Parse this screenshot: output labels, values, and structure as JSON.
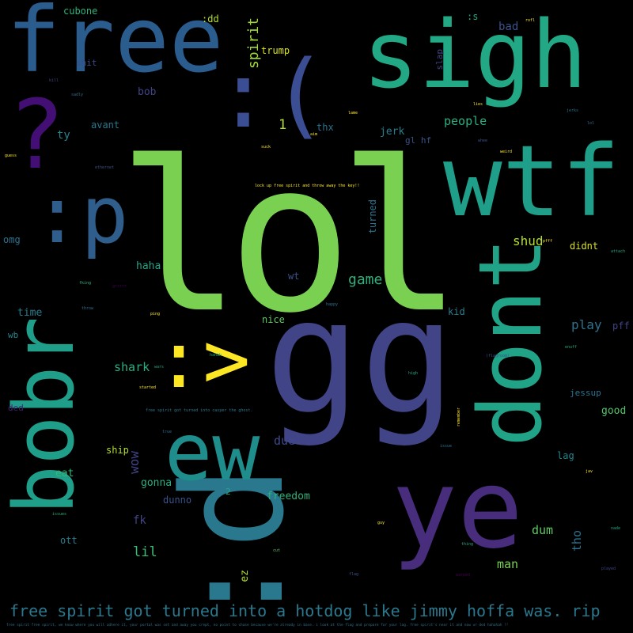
{
  "palette": {
    "background": "#000000",
    "green": "#7ad151",
    "teal": "#22a884",
    "blue": "#2a788e",
    "slate": "#414487",
    "purple": "#440154",
    "yellow": "#fde725"
  },
  "words": [
    {
      "id": "lol",
      "text": "lol"
    },
    {
      "id": "gg",
      "text": "gg"
    },
    {
      "id": "d",
      "text": ":d"
    },
    {
      "id": "free",
      "text": "free"
    },
    {
      "id": "sigh",
      "text": "sigh"
    },
    {
      "id": "paren",
      "text": ":("
    },
    {
      "id": "question",
      "text": "?"
    },
    {
      "id": "p",
      "text": ":p"
    },
    {
      "id": "wtf",
      "text": "wtf"
    },
    {
      "id": "dont",
      "text": "dont"
    },
    {
      "id": "bobr",
      "text": "bobr"
    },
    {
      "id": "ye",
      "text": "ye"
    },
    {
      "id": "ew",
      "text": "ew"
    },
    {
      "id": "gt",
      "text": ":>"
    },
    {
      "id": "hotdog",
      "text": "free spirit got turned into a hotdog like jimmy hoffa was. rip"
    },
    {
      "id": "spirit",
      "text": "spirit"
    },
    {
      "id": "trump",
      "text": "trump"
    },
    {
      "id": "cubone",
      "text": "cubone"
    },
    {
      "id": "dd",
      "text": ":dd"
    },
    {
      "id": "s",
      "text": ":s"
    },
    {
      "id": "bad",
      "text": "bad"
    },
    {
      "id": "slap",
      "text": "slap"
    },
    {
      "id": "shit",
      "text": "shit"
    },
    {
      "id": "bob",
      "text": "bob"
    },
    {
      "id": "avant",
      "text": "avant"
    },
    {
      "id": "ty",
      "text": "ty"
    },
    {
      "id": "one",
      "text": "1"
    },
    {
      "id": "thx",
      "text": "thx"
    },
    {
      "id": "jerk",
      "text": "jerk"
    },
    {
      "id": "glhf",
      "text": "gl hf"
    },
    {
      "id": "people",
      "text": "people"
    },
    {
      "id": "lockup",
      "text": "lock up free spirit and throw away the key!!"
    },
    {
      "id": "turned",
      "text": "turned"
    },
    {
      "id": "omg",
      "text": "omg"
    },
    {
      "id": "haha",
      "text": "haha"
    },
    {
      "id": "shud",
      "text": "shud"
    },
    {
      "id": "didnt",
      "text": "didnt"
    },
    {
      "id": "game",
      "text": "game"
    },
    {
      "id": "wt",
      "text": "wt"
    },
    {
      "id": "time",
      "text": "time"
    },
    {
      "id": "nice",
      "text": "nice"
    },
    {
      "id": "kid",
      "text": "kid"
    },
    {
      "id": "play",
      "text": "play"
    },
    {
      "id": "pff",
      "text": "pff"
    },
    {
      "id": "wb",
      "text": "wb"
    },
    {
      "id": "shark",
      "text": "shark"
    },
    {
      "id": "jessup",
      "text": "jessup"
    },
    {
      "id": "ded",
      "text": "ded"
    },
    {
      "id": "good",
      "text": "good"
    },
    {
      "id": "fsgt",
      "text": "free spirit got turned into casper the ghost."
    },
    {
      "id": "duel",
      "text": "duel"
    },
    {
      "id": "ship",
      "text": "ship"
    },
    {
      "id": "wow",
      "text": "wow"
    },
    {
      "id": "lag",
      "text": "lag"
    },
    {
      "id": "eat",
      "text": "eat"
    },
    {
      "id": "gonna",
      "text": "gonna"
    },
    {
      "id": "dunno",
      "text": "dunno"
    },
    {
      "id": "two",
      "text": "2"
    },
    {
      "id": "freedom",
      "text": "freedom"
    },
    {
      "id": "fk",
      "text": "fk"
    },
    {
      "id": "dum",
      "text": "dum"
    },
    {
      "id": "tho",
      "text": "tho"
    },
    {
      "id": "ott",
      "text": "ott"
    },
    {
      "id": "lil",
      "text": "lil"
    },
    {
      "id": "man",
      "text": "man"
    },
    {
      "id": "ez",
      "text": "ez"
    },
    {
      "id": "small1",
      "text": "kill"
    },
    {
      "id": "small2",
      "text": "sadly"
    },
    {
      "id": "small3",
      "text": "guess"
    },
    {
      "id": "small4",
      "text": "ethernet"
    },
    {
      "id": "small5",
      "text": "happy"
    },
    {
      "id": "small6",
      "text": "weird"
    },
    {
      "id": "small7",
      "text": "jerks"
    },
    {
      "id": "small8",
      "text": "grrrrr"
    },
    {
      "id": "small9",
      "text": "throw"
    },
    {
      "id": "small10",
      "text": "ping"
    },
    {
      "id": "small11",
      "text": "started"
    },
    {
      "id": "small12",
      "text": "hahah"
    },
    {
      "id": "small13",
      "text": "issues"
    },
    {
      "id": "small14",
      "text": "guy"
    },
    {
      "id": "small15",
      "text": "thing"
    },
    {
      "id": "small16",
      "text": "warped"
    },
    {
      "id": "small17",
      "text": "played"
    },
    {
      "id": "small18",
      "text": "remember"
    },
    {
      "id": "small19",
      "text": "enuff"
    },
    {
      "id": "small20",
      "text": "attach"
    },
    {
      "id": "small21",
      "text": "(flagroom)"
    },
    {
      "id": "small22",
      "text": "lies"
    },
    {
      "id": "small23",
      "text": "lame"
    },
    {
      "id": "small24",
      "text": "aim"
    },
    {
      "id": "small25",
      "text": "rofl"
    },
    {
      "id": "small26",
      "text": "cut"
    },
    {
      "id": "small27",
      "text": "fking"
    },
    {
      "id": "small28",
      "text": "wars"
    },
    {
      "id": "small29",
      "text": "issue"
    },
    {
      "id": "small30",
      "text": "true"
    },
    {
      "id": "small31",
      "text": "high"
    },
    {
      "id": "small32",
      "text": "lol"
    },
    {
      "id": "small33",
      "text": "whee"
    },
    {
      "id": "small34",
      "text": "pfff"
    },
    {
      "id": "small35",
      "text": "suck"
    },
    {
      "id": "small36",
      "text": "flag"
    },
    {
      "id": "small37",
      "text": "jav"
    },
    {
      "id": "small38",
      "text": "nade"
    },
    {
      "id": "bottom",
      "text": "free spirit free spirit, we know where you will adhere it, your portal was set and away you crept, no point to chase because we're already in base. i look at the flag and prepare for your lag. free spirit's near it and now ur ded hahahah !!"
    }
  ]
}
